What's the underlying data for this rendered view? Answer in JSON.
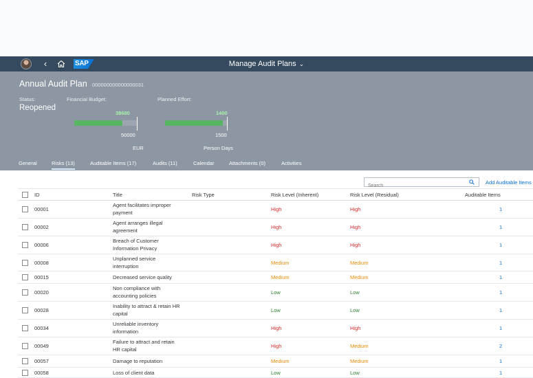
{
  "shell": {
    "app_title": "Manage Audit Plans",
    "logo_text": "SAP",
    "icons": [
      "user-avatar",
      "back-icon",
      "home-icon",
      "chevron-down-icon"
    ]
  },
  "header": {
    "title": "Annual Audit Plan",
    "object_id": "000000000000000031",
    "status_label": "Status:",
    "status_value": "Reopened",
    "budget": {
      "label": "Financial Budget:",
      "actual": "38680",
      "target": "50000",
      "unit": "EUR",
      "fill_fraction": 0.774
    },
    "effort": {
      "label": "Planned Effort:",
      "actual": "1400",
      "target": "1500",
      "unit": "Person Days",
      "fill_fraction": 0.933
    }
  },
  "tabs": [
    {
      "label": "General"
    },
    {
      "label": "Risks (13)",
      "active": true
    },
    {
      "label": "Auditable Items (17)"
    },
    {
      "label": "Audits (11)"
    },
    {
      "label": "Calendar"
    },
    {
      "label": "Attachments (0)"
    },
    {
      "label": "Activities"
    }
  ],
  "toolbar": {
    "search_placeholder": "Search",
    "add_label": "Add Auditable Items"
  },
  "table": {
    "columns": [
      "ID",
      "Title",
      "Risk Type",
      "Risk Level (Inherent)",
      "Risk Level (Residual)",
      "Auditable Items"
    ],
    "rows": [
      {
        "id": "00001",
        "title": "Agent facilitates improper payment",
        "type": "",
        "inherent": "High",
        "residual": "High",
        "items": "1"
      },
      {
        "id": "00002",
        "title": "Agent arranges illegal agreement",
        "type": "",
        "inherent": "High",
        "residual": "High",
        "items": "1"
      },
      {
        "id": "00006",
        "title": "Breach of Customer Information Privacy",
        "type": "",
        "inherent": "High",
        "residual": "High",
        "items": "1"
      },
      {
        "id": "00008",
        "title": "Unplanned service interruption",
        "type": "",
        "inherent": "Medium",
        "residual": "Medium",
        "items": "1"
      },
      {
        "id": "00015",
        "title": "Decreased service quality",
        "type": "",
        "inherent": "Medium",
        "residual": "Medium",
        "items": "1"
      },
      {
        "id": "00020",
        "title": "Non compliance with accounting policies",
        "type": "",
        "inherent": "Low",
        "residual": "Low",
        "items": "1"
      },
      {
        "id": "00028",
        "title": "Inability to attract & retain HR capital",
        "type": "",
        "inherent": "Low",
        "residual": "Low",
        "items": "1"
      },
      {
        "id": "00034",
        "title": "Unreliable inventory information",
        "type": "",
        "inherent": "High",
        "residual": "High",
        "items": "1"
      },
      {
        "id": "00049",
        "title": "Failure to attract and retain HR capital",
        "type": "",
        "inherent": "High",
        "residual": "Medium",
        "items": "2"
      },
      {
        "id": "00057",
        "title": "Damage to reputation",
        "type": "",
        "inherent": "Medium",
        "residual": "Medium",
        "items": "1"
      },
      {
        "id": "00058",
        "title": "Loss of client data",
        "type": "",
        "inherent": "Low",
        "residual": "Low",
        "items": "1"
      }
    ]
  }
}
